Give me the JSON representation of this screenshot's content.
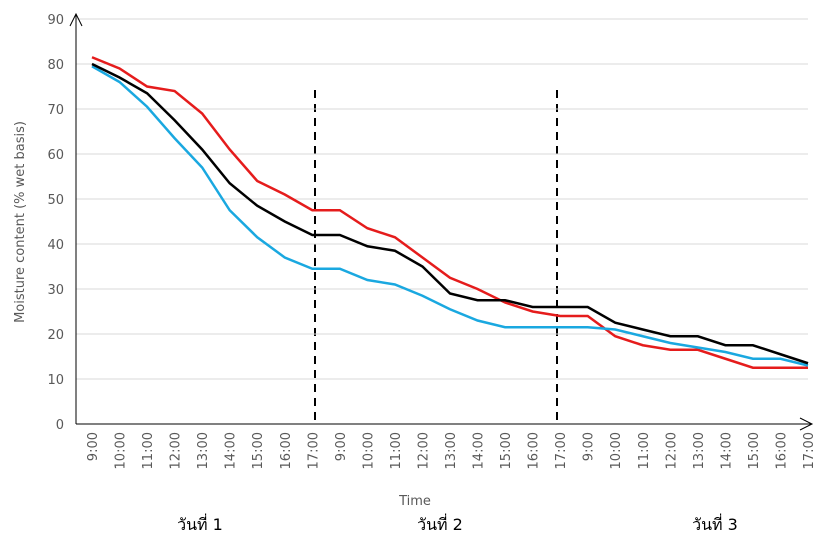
{
  "chart_data": {
    "type": "line",
    "x_label": "Time",
    "y_label": "Moisture content (% wet basis)",
    "categories": [
      "9:00",
      "10:00",
      "11:00",
      "12:00",
      "13:00",
      "14:00",
      "15:00",
      "16:00",
      "17:00",
      "9:00",
      "10:00",
      "11:00",
      "12:00",
      "13:00",
      "14:00",
      "15:00",
      "16:00",
      "17:00",
      "9:00",
      "10:00",
      "11:00",
      "12:00",
      "13:00",
      "14:00",
      "15:00",
      "16:00",
      "17:00"
    ],
    "groups": [
      "วันที่ 1",
      "วันที่ 2",
      "วันที่ 3"
    ],
    "series": [
      {
        "color": "#e51c1c",
        "values": [
          81.5,
          79,
          75,
          74,
          69,
          61,
          54,
          51,
          47.5,
          47.5,
          43.5,
          41.5,
          37,
          32.5,
          30,
          27,
          25,
          24,
          24,
          19.5,
          17.5,
          16.5,
          16.5,
          14.5,
          12.5,
          12.5,
          12.5
        ]
      },
      {
        "color": "#1aa8e0",
        "values": [
          79.5,
          76,
          70.5,
          63.5,
          57,
          47.5,
          41.5,
          37,
          34.5,
          34.5,
          32,
          31,
          28.5,
          25.5,
          23,
          21.5,
          21.5,
          21.5,
          21.5,
          21,
          19.5,
          18,
          17,
          16,
          14.5,
          14.5,
          13
        ]
      },
      {
        "color": "#000000",
        "values": [
          80,
          77,
          73.5,
          67.5,
          61,
          53.5,
          48.5,
          45,
          42,
          42,
          39.5,
          38.5,
          35,
          29,
          27.5,
          27.5,
          26,
          26,
          26,
          22.5,
          21,
          19.5,
          19.5,
          17.5,
          17.5,
          15.5,
          13.5
        ]
      }
    ],
    "ylim": [
      0,
      90
    ],
    "yticks": [
      0,
      10,
      20,
      30,
      40,
      50,
      60,
      70,
      80,
      90
    ],
    "grid": true
  }
}
